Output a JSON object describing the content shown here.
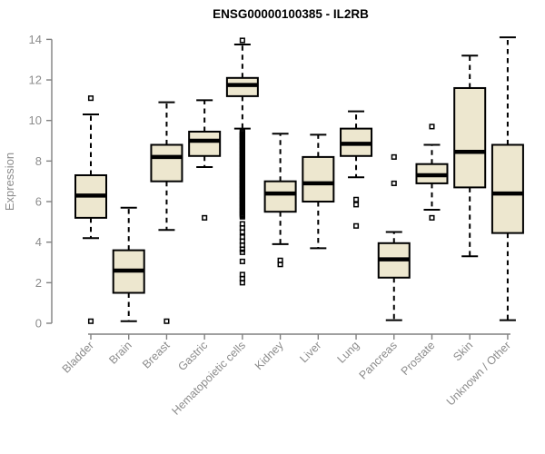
{
  "title": "ENSG00000100385 - IL2RB",
  "y_axis": {
    "label": "Expression",
    "ticks": [
      0,
      2,
      4,
      6,
      8,
      10,
      12,
      14
    ],
    "min": 0,
    "max": 14
  },
  "colors": {
    "background": "#ffffff",
    "box_fill": "#EDE7CF",
    "box_stroke": "#000000",
    "median": "#000000",
    "whisker": "#000000",
    "axis_line": "#808080",
    "axis_text": "#8c8c8c",
    "title_text": "#000000"
  },
  "chart_data": {
    "type": "boxplot",
    "title": "ENSG00000100385 - IL2RB",
    "xlabel": "",
    "ylabel": "Expression",
    "ylim": [
      0,
      14
    ],
    "y_ticks": [
      0,
      2,
      4,
      6,
      8,
      10,
      12,
      14
    ],
    "grid": false,
    "whisker_style": "dashed",
    "categories": [
      "Bladder",
      "Brain",
      "Breast",
      "Gastric",
      "Hematopoietic cells",
      "Kidney",
      "Liver",
      "Lung",
      "Pancreas",
      "Prostate",
      "Skin",
      "Unknown / Other"
    ],
    "boxes": [
      {
        "category": "Bladder",
        "low": 4.2,
        "q1": 5.2,
        "median": 6.3,
        "q3": 7.3,
        "high": 10.3,
        "outliers": [
          11.1,
          0.1
        ]
      },
      {
        "category": "Brain",
        "low": 0.1,
        "q1": 1.5,
        "median": 2.6,
        "q3": 3.6,
        "high": 5.7,
        "outliers": []
      },
      {
        "category": "Breast",
        "low": 4.6,
        "q1": 7.0,
        "median": 8.2,
        "q3": 8.8,
        "high": 10.9,
        "outliers": [
          0.1
        ]
      },
      {
        "category": "Gastric",
        "low": 7.7,
        "q1": 8.25,
        "median": 9.0,
        "q3": 9.45,
        "high": 11.0,
        "outliers": [
          5.2
        ]
      },
      {
        "category": "Hematopoietic cells",
        "low": 9.6,
        "q1": 11.2,
        "median": 11.75,
        "q3": 12.1,
        "high": 13.75,
        "outliers": [
          13.95,
          4.9,
          4.7,
          4.5,
          4.25,
          4.05,
          3.85,
          3.65,
          3.5,
          3.05,
          2.4,
          2.2,
          2.0
        ],
        "outlier_dense": {
          "from": 5.25,
          "to": 9.45,
          "step": 0.06
        }
      },
      {
        "category": "Kidney",
        "low": 3.9,
        "q1": 5.5,
        "median": 6.4,
        "q3": 7.0,
        "high": 9.35,
        "outliers": [
          3.1,
          2.9
        ]
      },
      {
        "category": "Liver",
        "low": 3.7,
        "q1": 6.0,
        "median": 6.9,
        "q3": 8.2,
        "high": 9.3,
        "outliers": []
      },
      {
        "category": "Lung",
        "low": 7.2,
        "q1": 8.25,
        "median": 8.85,
        "q3": 9.6,
        "high": 10.45,
        "outliers": [
          6.1,
          5.85,
          4.8
        ]
      },
      {
        "category": "Pancreas",
        "low": 0.15,
        "q1": 2.25,
        "median": 3.15,
        "q3": 3.95,
        "high": 4.5,
        "outliers": [
          8.2,
          6.9
        ]
      },
      {
        "category": "Prostate",
        "low": 5.6,
        "q1": 6.9,
        "median": 7.3,
        "q3": 7.85,
        "high": 8.8,
        "outliers": [
          9.7,
          5.2
        ]
      },
      {
        "category": "Skin",
        "low": 3.3,
        "q1": 6.7,
        "median": 8.45,
        "q3": 11.6,
        "high": 13.2,
        "outliers": []
      },
      {
        "category": "Unknown / Other",
        "low": 0.15,
        "q1": 4.45,
        "median": 6.4,
        "q3": 8.8,
        "high": 14.1,
        "outliers": []
      }
    ]
  }
}
